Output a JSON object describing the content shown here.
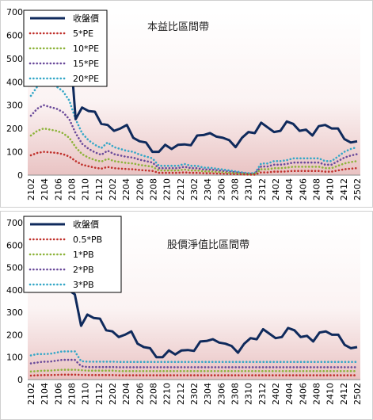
{
  "colors": {
    "close": "#0f2a5c",
    "pe5": "#c0302b",
    "pe10": "#8db33a",
    "pe15": "#6a4a9a",
    "pe20": "#34a7c7",
    "pb05": "#c0302b",
    "pb1": "#8db33a",
    "pb2": "#6a4a9a",
    "pb3": "#34a7c7",
    "plot_bg_top": "#ffffff",
    "plot_bg_bottom": "#e9c3c3"
  },
  "chart_data": [
    {
      "type": "line",
      "title": "本益比區間帶",
      "xlabel": "",
      "ylabel": "",
      "ylim": [
        0,
        700
      ],
      "yticks": [
        "0",
        "100",
        "200",
        "300",
        "400",
        "500",
        "600",
        "700"
      ],
      "x_tick_labels": [
        "2102",
        "2104",
        "2106",
        "2108",
        "2110",
        "2112",
        "2202",
        "2204",
        "2206",
        "2208",
        "2210",
        "2212",
        "2302",
        "2304",
        "2306",
        "2308",
        "2310",
        "2312",
        "2402",
        "2404",
        "2406",
        "2408",
        "2410",
        "2412",
        "2502"
      ],
      "legend_position": "top-left",
      "series": [
        {
          "name": "收盤價",
          "style": "solid",
          "values": [
            null,
            null,
            null,
            null,
            null,
            null,
            600,
            240,
            290,
            275,
            272,
            220,
            215,
            190,
            200,
            215,
            160,
            145,
            140,
            100,
            100,
            130,
            112,
            130,
            132,
            128,
            170,
            172,
            180,
            165,
            160,
            150,
            120,
            160,
            185,
            180,
            225,
            205,
            185,
            190,
            230,
            220,
            190,
            195,
            170,
            210,
            215,
            200,
            200,
            155,
            140,
            145
          ]
        },
        {
          "name": "5*PE",
          "style": "dotted",
          "values": [
            85,
            95,
            100,
            98,
            95,
            90,
            80,
            60,
            45,
            38,
            32,
            28,
            35,
            30,
            28,
            26,
            25,
            22,
            20,
            18,
            10,
            10,
            10,
            10,
            12,
            10,
            10,
            8,
            8,
            7,
            6,
            5,
            4,
            3,
            2,
            2,
            12,
            12,
            15,
            15,
            16,
            18,
            18,
            18,
            18,
            18,
            15,
            15,
            20,
            25,
            28,
            30
          ]
        },
        {
          "name": "10*PE",
          "style": "dotted",
          "values": [
            170,
            190,
            200,
            195,
            190,
            180,
            160,
            120,
            90,
            75,
            65,
            58,
            70,
            60,
            56,
            52,
            50,
            44,
            40,
            36,
            20,
            20,
            20,
            20,
            24,
            20,
            20,
            16,
            16,
            14,
            12,
            10,
            8,
            6,
            4,
            4,
            25,
            25,
            30,
            30,
            32,
            36,
            36,
            36,
            36,
            36,
            30,
            30,
            40,
            50,
            56,
            60
          ]
        },
        {
          "name": "15*PE",
          "style": "dotted",
          "values": [
            255,
            285,
            300,
            292,
            285,
            270,
            240,
            180,
            135,
            113,
            98,
            87,
            105,
            90,
            84,
            78,
            75,
            66,
            60,
            54,
            30,
            30,
            30,
            30,
            36,
            30,
            30,
            24,
            24,
            21,
            18,
            15,
            12,
            9,
            6,
            6,
            37,
            37,
            45,
            45,
            48,
            54,
            54,
            54,
            54,
            54,
            45,
            45,
            60,
            75,
            84,
            90
          ]
        },
        {
          "name": "20*PE",
          "style": "dotted",
          "values": [
            340,
            380,
            400,
            390,
            380,
            360,
            320,
            240,
            180,
            150,
            130,
            116,
            140,
            120,
            112,
            104,
            100,
            88,
            80,
            72,
            40,
            40,
            40,
            40,
            48,
            40,
            40,
            32,
            32,
            28,
            24,
            20,
            16,
            12,
            8,
            8,
            50,
            50,
            60,
            60,
            64,
            72,
            72,
            72,
            72,
            72,
            60,
            60,
            80,
            100,
            112,
            120
          ]
        }
      ]
    },
    {
      "type": "line",
      "title": "股價淨值比區間帶",
      "xlabel": "",
      "ylabel": "",
      "ylim": [
        0,
        700
      ],
      "yticks": [
        "0",
        "100",
        "200",
        "300",
        "400",
        "500",
        "600",
        "700"
      ],
      "x_tick_labels": [
        "2102",
        "2104",
        "2106",
        "2108",
        "2110",
        "2112",
        "2202",
        "2204",
        "2206",
        "2208",
        "2210",
        "2212",
        "2302",
        "2304",
        "2306",
        "2308",
        "2310",
        "2312",
        "2402",
        "2404",
        "2406",
        "2408",
        "2410",
        "2412",
        "2502"
      ],
      "legend_position": "top-left",
      "series": [
        {
          "name": "收盤價",
          "style": "solid",
          "values": [
            null,
            null,
            null,
            null,
            null,
            null,
            400,
            380,
            240,
            290,
            275,
            272,
            220,
            215,
            190,
            200,
            215,
            160,
            145,
            140,
            100,
            100,
            130,
            112,
            130,
            132,
            128,
            170,
            172,
            180,
            165,
            160,
            150,
            120,
            160,
            185,
            180,
            225,
            205,
            185,
            190,
            230,
            220,
            190,
            195,
            170,
            210,
            215,
            200,
            200,
            155,
            140,
            145
          ]
        },
        {
          "name": "0.5*PB",
          "style": "dotted",
          "values": [
            18,
            19,
            20,
            20,
            21,
            22,
            22,
            22,
            21,
            20,
            20,
            20,
            20,
            20,
            19,
            19,
            19,
            19,
            19,
            19,
            19,
            19,
            19,
            19,
            19,
            19,
            19,
            19,
            19,
            19,
            19,
            19,
            19,
            19,
            19,
            19,
            19,
            19,
            19,
            19,
            19,
            19,
            19,
            19,
            19,
            19,
            19,
            19,
            19,
            19,
            19,
            19,
            19
          ]
        },
        {
          "name": "1*PB",
          "style": "dotted",
          "values": [
            36,
            38,
            40,
            40,
            42,
            44,
            44,
            44,
            42,
            40,
            40,
            40,
            40,
            40,
            38,
            38,
            38,
            38,
            38,
            38,
            38,
            38,
            38,
            38,
            38,
            38,
            38,
            38,
            38,
            38,
            38,
            38,
            38,
            38,
            38,
            38,
            38,
            38,
            38,
            38,
            38,
            38,
            38,
            38,
            38,
            38,
            38,
            38,
            38,
            38,
            38,
            38,
            38
          ]
        },
        {
          "name": "2*PB",
          "style": "dotted",
          "values": [
            72,
            76,
            80,
            80,
            84,
            88,
            88,
            88,
            60,
            56,
            56,
            56,
            56,
            56,
            55,
            55,
            55,
            55,
            55,
            55,
            55,
            55,
            55,
            55,
            55,
            55,
            55,
            55,
            55,
            55,
            55,
            55,
            55,
            55,
            55,
            55,
            55,
            55,
            55,
            55,
            55,
            55,
            55,
            55,
            55,
            55,
            55,
            55,
            55,
            55,
            55,
            55,
            55
          ]
        },
        {
          "name": "3*PB",
          "style": "dotted",
          "values": [
            108,
            114,
            114,
            115,
            120,
            126,
            126,
            126,
            82,
            80,
            80,
            80,
            80,
            80,
            79,
            79,
            79,
            79,
            79,
            79,
            79,
            79,
            79,
            79,
            79,
            79,
            79,
            79,
            79,
            79,
            79,
            79,
            79,
            79,
            79,
            79,
            79,
            79,
            79,
            79,
            79,
            79,
            79,
            79,
            79,
            79,
            79,
            79,
            79,
            79,
            79,
            79,
            79
          ]
        }
      ]
    }
  ]
}
